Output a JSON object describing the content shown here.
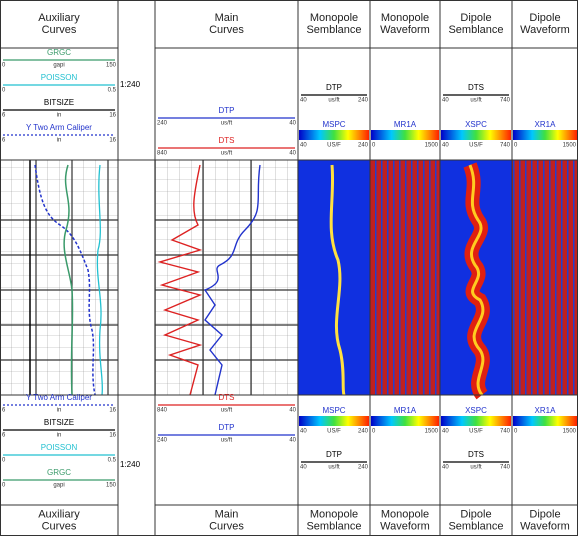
{
  "depth_scale": "1:240",
  "columns": [
    {
      "title": "Auxiliary Curves",
      "legends": [
        {
          "name": "GRGC",
          "unit": "gapi",
          "left": "0",
          "right": "150",
          "color": "#3a9a6a"
        },
        {
          "name": "POISSON",
          "unit": "",
          "left": "0",
          "right": "0.5",
          "color": "#22c0d0"
        },
        {
          "name": "BITSIZE",
          "unit": "in",
          "left": "6",
          "right": "16",
          "color": "#000000"
        },
        {
          "name": "Y Two Arm Caliper",
          "unit": "in",
          "left": "6",
          "right": "16",
          "color": "#2233cc"
        }
      ]
    },
    {
      "title": "Main Curves",
      "legends": [
        {
          "name": "DTP",
          "unit": "us/ft",
          "left": "240",
          "right": "40",
          "color": "#2233cc"
        },
        {
          "name": "DTS",
          "unit": "us/ft",
          "left": "840",
          "right": "40",
          "color": "#dd2222"
        }
      ]
    },
    {
      "title": "Monopole Semblance",
      "legends": [
        {
          "name": "DTP",
          "unit": "us/ft",
          "left": "40",
          "right": "240",
          "color": "#000000"
        }
      ],
      "image": {
        "name": "MSPC",
        "unit": "US/F",
        "left": "40",
        "right": "240"
      }
    },
    {
      "title": "Monopole Waveform",
      "image": {
        "name": "MR1A",
        "left": "0",
        "right": "1500"
      }
    },
    {
      "title": "Dipole Semblance",
      "legends": [
        {
          "name": "DTS",
          "unit": "us/ft",
          "left": "40",
          "right": "740",
          "color": "#000000"
        }
      ],
      "image": {
        "name": "XSPC",
        "unit": "US/F",
        "left": "40",
        "right": "740"
      }
    },
    {
      "title": "Dipole Waveform",
      "image": {
        "name": "XR1A",
        "left": "0",
        "right": "1500"
      }
    }
  ]
}
